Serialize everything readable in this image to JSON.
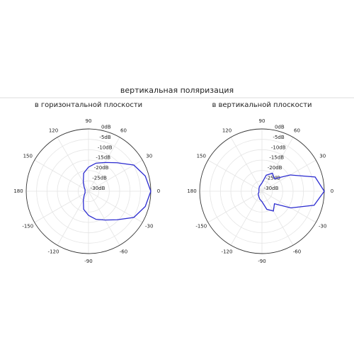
{
  "title": "вертикальная поляризация",
  "chart_data": [
    {
      "type": "polar",
      "title": "в горизонтальной плоскости",
      "rlim": [
        -30,
        0
      ],
      "rticks": [
        {
          "value": 0,
          "label": "0dB"
        },
        {
          "value": -5,
          "label": "-5dB"
        },
        {
          "value": -10,
          "label": "-10dB"
        },
        {
          "value": -15,
          "label": "-15dB"
        },
        {
          "value": -20,
          "label": "-20dB"
        },
        {
          "value": -25,
          "label": "-25dB"
        },
        {
          "value": -30,
          "label": "-30dB"
        }
      ],
      "thetaticks": [
        0,
        30,
        60,
        90,
        120,
        150,
        180,
        -150,
        -120,
        -90,
        -60,
        -30
      ],
      "grid": true,
      "x": [
        -180,
        -165,
        -150,
        -135,
        -120,
        -105,
        -90,
        -75,
        -60,
        -45,
        -30,
        -15,
        0,
        15,
        30,
        45,
        60,
        75,
        90,
        105,
        120,
        135,
        150,
        165,
        180
      ],
      "series": [
        {
          "color": "#2b2bd0",
          "values": [
            -28.3,
            -28.3,
            -28,
            -27,
            -25,
            -21,
            -18.4,
            -16,
            -14,
            -10.6,
            -4.8,
            -1.7,
            0,
            -1.7,
            -4.8,
            -10.6,
            -14,
            -16,
            -18.4,
            -21,
            -25,
            -27,
            -28,
            -28.3,
            -28.3
          ]
        }
      ]
    },
    {
      "type": "polar",
      "title": "в вертикальной плоскости",
      "rlim": [
        -30,
        0
      ],
      "rticks": [
        {
          "value": 0,
          "label": "0dB"
        },
        {
          "value": -5,
          "label": "-5dB"
        },
        {
          "value": -10,
          "label": "-10dB"
        },
        {
          "value": -15,
          "label": "-15dB"
        },
        {
          "value": -20,
          "label": "-20dB"
        },
        {
          "value": -25,
          "label": "-25dB"
        },
        {
          "value": -30,
          "label": "-30dB"
        }
      ],
      "thetaticks": [
        0,
        30,
        60,
        90,
        120,
        150,
        180,
        -150,
        -120,
        -90,
        -60,
        -30
      ],
      "grid": true,
      "x": [
        -180,
        -165,
        -150,
        -135,
        -120,
        -105,
        -90,
        -75,
        -60,
        -45,
        -30,
        -15,
        0,
        15,
        30,
        45,
        60,
        75,
        90,
        105,
        120,
        135,
        150,
        165,
        180
      ],
      "series": [
        {
          "color": "#2b2bd0",
          "values": [
            -28.5,
            -28.5,
            -28,
            -27.5,
            -27,
            -26,
            -25,
            -21,
            -19,
            -21.5,
            -14,
            -4,
            0,
            -3.5,
            -14.3,
            -21.5,
            -20,
            -22,
            -26,
            -27,
            -27.5,
            -28,
            -28.3,
            -28.5,
            -28.5
          ]
        }
      ]
    }
  ]
}
